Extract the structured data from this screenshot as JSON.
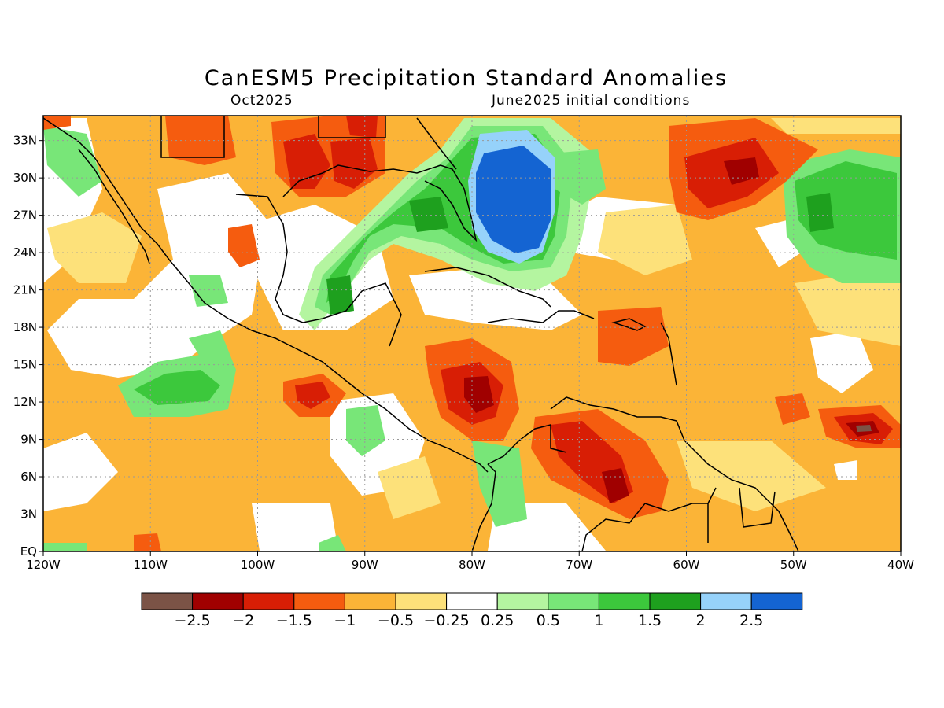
{
  "header": {
    "title": "CanESM5 Precipitation Standard Anomalies",
    "subtitle_left": "Oct2025",
    "subtitle_right": "June2025 initial conditions"
  },
  "map": {
    "lon_range": [
      -120,
      -40
    ],
    "lat_range": [
      0,
      35
    ],
    "lon_ticks": [
      "120W",
      "110W",
      "100W",
      "90W",
      "80W",
      "70W",
      "60W",
      "50W",
      "40W"
    ],
    "lat_ticks": [
      "EQ",
      "3N",
      "6N",
      "9N",
      "12N",
      "15N",
      "18N",
      "21N",
      "24N",
      "27N",
      "30N",
      "33N"
    ],
    "grid": "dotted"
  },
  "colorbar": {
    "colors": [
      "#7b5346",
      "#a00000",
      "#d81e05",
      "#f55c0f",
      "#fbb437",
      "#fde17a",
      "#ffffff",
      "#b4f5a0",
      "#78e678",
      "#3cc83c",
      "#1ea01e",
      "#96d2fa",
      "#1464d2"
    ],
    "labels": [
      "−2.5",
      "−2",
      "−1.5",
      "−1",
      "−0.5",
      "−0.25",
      "0.25",
      "0.5",
      "1",
      "1.5",
      "2",
      "2.5"
    ]
  }
}
